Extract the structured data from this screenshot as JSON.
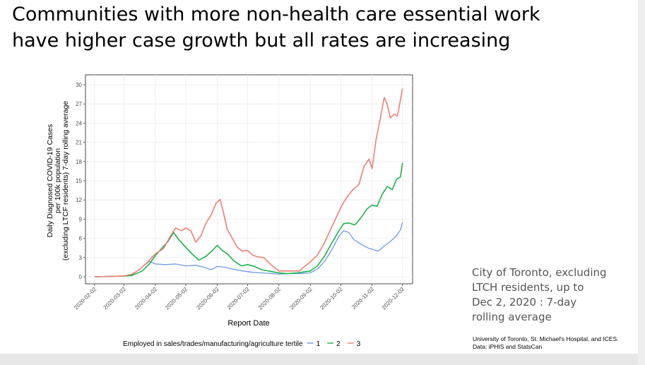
{
  "slide": {
    "title_line1": "Communities with more non-health care essential work",
    "title_line2": "have higher case growth but all rates are increasing",
    "note_line1": "City of Toronto, excluding",
    "note_line2": "LTCH residents, up to",
    "note_line3": "Dec 2, 2020 : 7-day",
    "note_line4": "rolling average",
    "source_line1": "University of Toronto, St. Michael's Hospital, and ICES.",
    "source_line2": "Data: iPHIS and StatsCan"
  },
  "chart_data": {
    "type": "line",
    "xlabel": "Report Date",
    "ylabel_lines": [
      "Daily Diagnosed COVID-19 Cases",
      "per 100k population",
      "(excluding LTCF residents) 7-day rolling average"
    ],
    "ylim": [
      0,
      30
    ],
    "yticks": [
      0,
      3,
      6,
      9,
      12,
      15,
      18,
      21,
      24,
      27,
      30
    ],
    "xticks": [
      "2020-02-02",
      "2020-03-02",
      "2020-04-02",
      "2020-05-02",
      "2020-06-02",
      "2020-07-02",
      "2020-08-02",
      "2020-09-02",
      "2020-10-02",
      "2020-11-02",
      "2020-12-02"
    ],
    "xlim": [
      "2020-01-24",
      "2020-12-12"
    ],
    "grid": true,
    "legend_title": "Employed in sales/trades/manufacturing/agriculture tertile",
    "legend_position": "bottom",
    "series": [
      {
        "name": "1",
        "color": "#6e9be6",
        "points": [
          [
            "2020-02-02",
            0
          ],
          [
            "2020-03-01",
            0.1
          ],
          [
            "2020-03-10",
            0.3
          ],
          [
            "2020-03-20",
            1.5
          ],
          [
            "2020-03-27",
            2.4
          ],
          [
            "2020-04-02",
            2.0
          ],
          [
            "2020-04-12",
            1.9
          ],
          [
            "2020-04-22",
            2.0
          ],
          [
            "2020-05-02",
            1.7
          ],
          [
            "2020-05-12",
            1.8
          ],
          [
            "2020-05-20",
            1.5
          ],
          [
            "2020-05-27",
            1.1
          ],
          [
            "2020-06-02",
            1.6
          ],
          [
            "2020-06-09",
            1.5
          ],
          [
            "2020-06-17",
            1.2
          ],
          [
            "2020-06-27",
            0.9
          ],
          [
            "2020-07-07",
            0.7
          ],
          [
            "2020-07-17",
            0.6
          ],
          [
            "2020-07-27",
            0.5
          ],
          [
            "2020-08-02",
            0.4
          ],
          [
            "2020-08-12",
            0.5
          ],
          [
            "2020-08-22",
            0.5
          ],
          [
            "2020-09-02",
            0.6
          ],
          [
            "2020-09-10",
            1.3
          ],
          [
            "2020-09-17",
            2.6
          ],
          [
            "2020-09-24",
            4.4
          ],
          [
            "2020-09-30",
            6.3
          ],
          [
            "2020-10-05",
            7.2
          ],
          [
            "2020-10-10",
            6.9
          ],
          [
            "2020-10-15",
            5.8
          ],
          [
            "2020-10-22",
            5.1
          ],
          [
            "2020-10-29",
            4.5
          ],
          [
            "2020-11-02",
            4.3
          ],
          [
            "2020-11-08",
            4.0
          ],
          [
            "2020-11-14",
            4.8
          ],
          [
            "2020-11-20",
            5.5
          ],
          [
            "2020-11-26",
            6.4
          ],
          [
            "2020-11-30",
            7.3
          ],
          [
            "2020-12-02",
            8.5
          ]
        ]
      },
      {
        "name": "2",
        "color": "#1fb34a",
        "points": [
          [
            "2020-02-02",
            0
          ],
          [
            "2020-03-01",
            0.1
          ],
          [
            "2020-03-10",
            0.2
          ],
          [
            "2020-03-20",
            0.9
          ],
          [
            "2020-03-27",
            2.0
          ],
          [
            "2020-04-02",
            3.3
          ],
          [
            "2020-04-08",
            4.4
          ],
          [
            "2020-04-14",
            5.4
          ],
          [
            "2020-04-20",
            6.9
          ],
          [
            "2020-04-25",
            5.8
          ],
          [
            "2020-05-02",
            4.6
          ],
          [
            "2020-05-08",
            3.6
          ],
          [
            "2020-05-15",
            2.6
          ],
          [
            "2020-05-22",
            3.2
          ],
          [
            "2020-05-29",
            4.2
          ],
          [
            "2020-06-02",
            4.9
          ],
          [
            "2020-06-07",
            4.1
          ],
          [
            "2020-06-12",
            3.6
          ],
          [
            "2020-06-19",
            2.4
          ],
          [
            "2020-06-26",
            1.7
          ],
          [
            "2020-07-02",
            1.9
          ],
          [
            "2020-07-09",
            1.6
          ],
          [
            "2020-07-16",
            1.1
          ],
          [
            "2020-07-26",
            0.8
          ],
          [
            "2020-08-02",
            0.6
          ],
          [
            "2020-08-10",
            0.5
          ],
          [
            "2020-08-20",
            0.6
          ],
          [
            "2020-09-02",
            0.9
          ],
          [
            "2020-09-09",
            1.7
          ],
          [
            "2020-09-16",
            3.2
          ],
          [
            "2020-09-23",
            5.2
          ],
          [
            "2020-09-30",
            7.1
          ],
          [
            "2020-10-05",
            8.3
          ],
          [
            "2020-10-10",
            8.4
          ],
          [
            "2020-10-16",
            8.1
          ],
          [
            "2020-10-22",
            9.2
          ],
          [
            "2020-10-28",
            10.6
          ],
          [
            "2020-11-02",
            11.2
          ],
          [
            "2020-11-07",
            11.0
          ],
          [
            "2020-11-12",
            12.9
          ],
          [
            "2020-11-17",
            14.1
          ],
          [
            "2020-11-22",
            13.6
          ],
          [
            "2020-11-26",
            15.2
          ],
          [
            "2020-11-30",
            15.6
          ],
          [
            "2020-12-02",
            17.8
          ]
        ]
      },
      {
        "name": "3",
        "color": "#ee7f74",
        "points": [
          [
            "2020-02-02",
            0
          ],
          [
            "2020-03-01",
            0.1
          ],
          [
            "2020-03-10",
            0.4
          ],
          [
            "2020-03-18",
            1.2
          ],
          [
            "2020-03-26",
            2.4
          ],
          [
            "2020-04-02",
            3.6
          ],
          [
            "2020-04-10",
            4.4
          ],
          [
            "2020-04-17",
            6.4
          ],
          [
            "2020-04-22",
            7.6
          ],
          [
            "2020-04-28",
            7.2
          ],
          [
            "2020-05-02",
            7.6
          ],
          [
            "2020-05-07",
            7.2
          ],
          [
            "2020-05-12",
            5.4
          ],
          [
            "2020-05-17",
            6.4
          ],
          [
            "2020-05-22",
            8.4
          ],
          [
            "2020-05-27",
            9.6
          ],
          [
            "2020-06-01",
            11.5
          ],
          [
            "2020-06-05",
            12.1
          ],
          [
            "2020-06-08",
            10.2
          ],
          [
            "2020-06-12",
            7.4
          ],
          [
            "2020-06-17",
            6.0
          ],
          [
            "2020-06-22",
            4.6
          ],
          [
            "2020-06-27",
            4.0
          ],
          [
            "2020-07-02",
            4.1
          ],
          [
            "2020-07-07",
            3.4
          ],
          [
            "2020-07-12",
            3.1
          ],
          [
            "2020-07-18",
            3.0
          ],
          [
            "2020-07-25",
            1.9
          ],
          [
            "2020-08-02",
            0.9
          ],
          [
            "2020-08-12",
            0.9
          ],
          [
            "2020-08-22",
            0.9
          ],
          [
            "2020-09-02",
            2.3
          ],
          [
            "2020-09-09",
            3.4
          ],
          [
            "2020-09-16",
            5.3
          ],
          [
            "2020-09-22",
            7.4
          ],
          [
            "2020-09-28",
            9.4
          ],
          [
            "2020-10-03",
            11.1
          ],
          [
            "2020-10-08",
            12.4
          ],
          [
            "2020-10-14",
            13.6
          ],
          [
            "2020-10-20",
            14.4
          ],
          [
            "2020-10-25",
            17.2
          ],
          [
            "2020-10-30",
            18.4
          ],
          [
            "2020-11-02",
            16.9
          ],
          [
            "2020-11-06",
            21.5
          ],
          [
            "2020-11-10",
            24.6
          ],
          [
            "2020-11-14",
            28.0
          ],
          [
            "2020-11-17",
            26.9
          ],
          [
            "2020-11-20",
            24.8
          ],
          [
            "2020-11-24",
            25.4
          ],
          [
            "2020-11-27",
            25.1
          ],
          [
            "2020-11-30",
            27.6
          ],
          [
            "2020-12-02",
            29.4
          ]
        ]
      }
    ]
  }
}
